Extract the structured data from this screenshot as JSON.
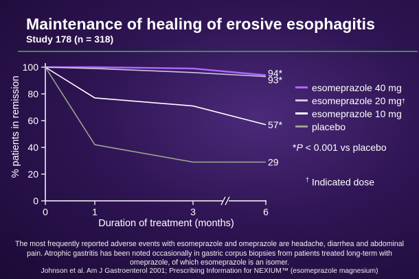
{
  "title": "Maintenance of healing of erosive esophagitis",
  "subtitle": "Study 178 (n = 318)",
  "chart_data": {
    "type": "line",
    "xlabel": "Duration of treatment (months)",
    "ylabel": "% patients in remission",
    "x_ticks": [
      "0",
      "1",
      "3",
      "6"
    ],
    "y_ticks": [
      "0",
      "20",
      "40",
      "60",
      "80",
      "100"
    ],
    "ylim": [
      0,
      100
    ],
    "axis_break": "between 3 and 6",
    "grid": false,
    "legend_position": "right",
    "series": [
      {
        "name": "esomeprazole 40 mg",
        "color": "#b266ff",
        "x": [
          0,
          1,
          3,
          6
        ],
        "y": [
          100,
          100,
          99,
          94
        ],
        "end_label": "94*"
      },
      {
        "name": "esomeprazole 20 mg",
        "name_mark": "†",
        "color": "#cfc8dc",
        "x": [
          0,
          1,
          3,
          6
        ],
        "y": [
          100,
          99,
          96,
          93
        ],
        "end_label": "93*"
      },
      {
        "name": "esomeprazole 10 mg",
        "color": "#ffffff",
        "x": [
          0,
          1,
          3,
          6
        ],
        "y": [
          100,
          77,
          71,
          57
        ],
        "end_label": "57*"
      },
      {
        "name": "placebo",
        "color": "#9aa38a",
        "x": [
          0,
          1,
          3,
          6
        ],
        "y": [
          100,
          42,
          29,
          29
        ],
        "end_label": "29"
      }
    ]
  },
  "notes": {
    "sig_prefix": "*",
    "sig_p": "P",
    "sig_rest": " < 0.001 vs placebo",
    "dose_mark": "†",
    "dose_text": " Indicated dose"
  },
  "footnote": "The most frequently reported adverse events with esomeprazole and omeprazole are headache, diarrhea and abdominal pain. Atrophic gastritis has been noted occasionally in gastric corpus biopsies from patients treated long-term with omeprazole, of which esomeprazole is an isomer.",
  "reference": "Johnson et al. Am J Gastroenterol 2001; Prescribing Information for NEXIUM™ (esomeprazole magnesium)"
}
